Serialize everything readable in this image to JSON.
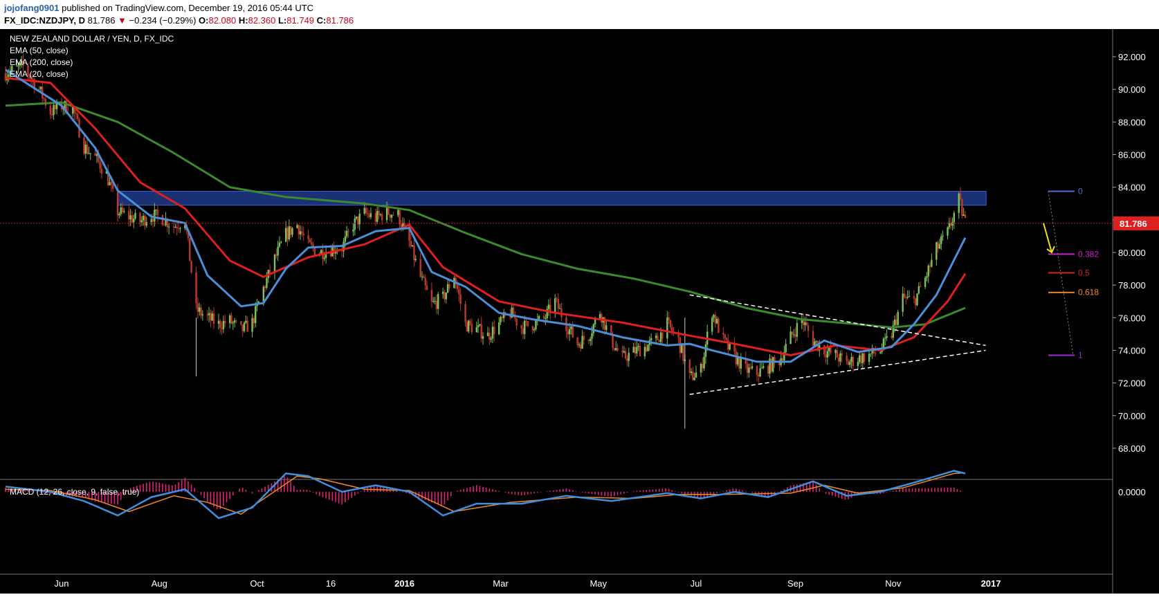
{
  "header": {
    "user": "jojofang0901",
    "published": "published on TradingView.com, December 19, 2016 05:44 UTC",
    "symbol": "FX_IDC:NZDJPY, D",
    "last": "81.786",
    "change_arrow": "▼",
    "change": "−0.234 (−0.29%)",
    "o_label": "O:",
    "o": "82.080",
    "h_label": "H:",
    "h": "82.360",
    "l_label": "L:",
    "l": "81.749",
    "c_label": "C:",
    "c": "81.786"
  },
  "legend": {
    "title": "NEW ZEALAND DOLLAR / YEN, D, FX_IDC",
    "ema50": "EMA (50, close)",
    "ema200": "EMA (200, close)",
    "ema20": "EMA (20, close)"
  },
  "macd": {
    "label": "MACD (12, 26, close, 9, false, true)",
    "zero_label": "0.0000"
  },
  "colors": {
    "background": "#000000",
    "up_candle": "#7cc35a",
    "down_candle": "#c0392b",
    "ema20": "#4a90d9",
    "ema50": "#e01f1f",
    "ema200": "#3c8a2e",
    "resistance_zone": "#1f3a8a",
    "price_line": "#e01f1f",
    "macd_line": "#3d8fe0",
    "signal_line": "#f08a24",
    "histogram": "#e8207a",
    "arrow": "#f2e600",
    "triangle": "#ffffff"
  },
  "chart_data": {
    "type": "candlestick",
    "instrument": "NZDJPY",
    "timeframe": "D",
    "y_axis": {
      "ticks": [
        "92.000",
        "90.000",
        "88.000",
        "86.000",
        "84.000",
        "82.000",
        "80.000",
        "78.000",
        "76.000",
        "74.000",
        "72.000",
        "70.000",
        "68.000"
      ],
      "ylim": [
        68.0,
        93.5
      ]
    },
    "x_axis": {
      "ticks": [
        "Jun",
        "Aug",
        "Oct",
        "16",
        "2016",
        "Mar",
        "May",
        "Jul",
        "Sep",
        "Nov",
        "2017"
      ]
    },
    "current_price_label": "81.786",
    "price_path": [
      [
        "2015-04-27",
        91.0
      ],
      [
        "2015-05-08",
        91.4
      ],
      [
        "2015-05-18",
        90.0
      ],
      [
        "2015-05-25",
        88.6
      ],
      [
        "2015-06-01",
        89.0
      ],
      [
        "2015-06-08",
        88.8
      ],
      [
        "2015-06-15",
        86.5
      ],
      [
        "2015-06-22",
        85.8
      ],
      [
        "2015-06-29",
        84.8
      ],
      [
        "2015-07-06",
        82.5
      ],
      [
        "2015-07-13",
        82.2
      ],
      [
        "2015-07-20",
        81.9
      ],
      [
        "2015-07-27",
        82.3
      ],
      [
        "2015-08-03",
        82.1
      ],
      [
        "2015-08-10",
        81.6
      ],
      [
        "2015-08-17",
        82.0
      ],
      [
        "2015-08-24",
        76.5
      ],
      [
        "2015-08-31",
        76.0
      ],
      [
        "2015-09-07",
        75.6
      ],
      [
        "2015-09-14",
        75.8
      ],
      [
        "2015-09-21",
        75.2
      ],
      [
        "2015-09-28",
        75.7
      ],
      [
        "2015-10-05",
        77.8
      ],
      [
        "2015-10-12",
        79.6
      ],
      [
        "2015-10-19",
        81.1
      ],
      [
        "2015-10-26",
        81.7
      ],
      [
        "2015-11-02",
        80.4
      ],
      [
        "2015-11-09",
        80.0
      ],
      [
        "2015-11-16",
        80.2
      ],
      [
        "2015-11-23",
        80.3
      ],
      [
        "2015-11-30",
        81.7
      ],
      [
        "2015-12-07",
        82.4
      ],
      [
        "2015-12-14",
        82.1
      ],
      [
        "2015-12-21",
        82.5
      ],
      [
        "2015-12-28",
        82.3
      ],
      [
        "2016-01-04",
        80.6
      ],
      [
        "2016-01-11",
        78.5
      ],
      [
        "2016-01-18",
        76.8
      ],
      [
        "2016-01-25",
        77.2
      ],
      [
        "2016-02-01",
        78.6
      ],
      [
        "2016-02-08",
        75.6
      ],
      [
        "2016-02-15",
        75.3
      ],
      [
        "2016-02-22",
        74.9
      ],
      [
        "2016-02-29",
        75.6
      ],
      [
        "2016-03-07",
        76.3
      ],
      [
        "2016-03-14",
        75.4
      ],
      [
        "2016-03-21",
        75.6
      ],
      [
        "2016-03-28",
        75.9
      ],
      [
        "2016-04-04",
        77.0
      ],
      [
        "2016-04-11",
        75.6
      ],
      [
        "2016-04-18",
        74.4
      ],
      [
        "2016-04-25",
        74.9
      ],
      [
        "2016-05-02",
        76.4
      ],
      [
        "2016-05-09",
        74.6
      ],
      [
        "2016-05-16",
        73.5
      ],
      [
        "2016-05-23",
        73.9
      ],
      [
        "2016-05-30",
        74.2
      ],
      [
        "2016-06-06",
        74.6
      ],
      [
        "2016-06-13",
        75.6
      ],
      [
        "2016-06-20",
        74.6
      ],
      [
        "2016-06-27",
        72.3
      ],
      [
        "2016-07-04",
        72.8
      ],
      [
        "2016-07-11",
        76.4
      ],
      [
        "2016-07-18",
        74.6
      ],
      [
        "2016-07-25",
        73.6
      ],
      [
        "2016-08-01",
        72.8
      ],
      [
        "2016-08-08",
        72.6
      ],
      [
        "2016-08-15",
        73.0
      ],
      [
        "2016-08-22",
        73.4
      ],
      [
        "2016-08-29",
        74.8
      ],
      [
        "2016-09-05",
        75.9
      ],
      [
        "2016-09-12",
        74.6
      ],
      [
        "2016-09-19",
        74.0
      ],
      [
        "2016-09-26",
        73.7
      ],
      [
        "2016-10-03",
        73.2
      ],
      [
        "2016-10-10",
        73.5
      ],
      [
        "2016-10-17",
        73.7
      ],
      [
        "2016-10-24",
        74.0
      ],
      [
        "2016-10-31",
        75.0
      ],
      [
        "2016-11-07",
        77.2
      ],
      [
        "2016-11-14",
        77.0
      ],
      [
        "2016-11-21",
        78.4
      ],
      [
        "2016-11-28",
        80.2
      ],
      [
        "2016-12-05",
        81.2
      ],
      [
        "2016-12-12",
        83.2
      ],
      [
        "2016-12-16",
        81.8
      ]
    ],
    "ema20": [
      [
        "2015-04-27",
        91.2
      ],
      [
        "2015-06-01",
        89.0
      ],
      [
        "2015-06-22",
        86.4
      ],
      [
        "2015-07-06",
        83.8
      ],
      [
        "2015-07-27",
        82.2
      ],
      [
        "2015-08-17",
        81.8
      ],
      [
        "2015-08-31",
        78.6
      ],
      [
        "2015-09-21",
        76.7
      ],
      [
        "2015-10-05",
        76.9
      ],
      [
        "2015-10-19",
        79.0
      ],
      [
        "2015-11-02",
        80.3
      ],
      [
        "2015-11-23",
        80.4
      ],
      [
        "2015-12-14",
        81.3
      ],
      [
        "2016-01-04",
        81.5
      ],
      [
        "2016-01-18",
        78.8
      ],
      [
        "2016-02-08",
        77.9
      ],
      [
        "2016-02-29",
        76.3
      ],
      [
        "2016-03-21",
        75.9
      ],
      [
        "2016-04-18",
        75.5
      ],
      [
        "2016-05-16",
        74.8
      ],
      [
        "2016-06-13",
        74.3
      ],
      [
        "2016-06-27",
        74.4
      ],
      [
        "2016-07-11",
        74.0
      ],
      [
        "2016-08-08",
        73.3
      ],
      [
        "2016-08-29",
        73.3
      ],
      [
        "2016-09-19",
        74.6
      ],
      [
        "2016-10-10",
        73.9
      ],
      [
        "2016-10-31",
        74.2
      ],
      [
        "2016-11-14",
        75.6
      ],
      [
        "2016-11-28",
        77.4
      ],
      [
        "2016-12-16",
        80.9
      ]
    ],
    "ema50": [
      [
        "2015-04-27",
        90.7
      ],
      [
        "2015-05-25",
        90.4
      ],
      [
        "2015-06-22",
        87.6
      ],
      [
        "2015-07-20",
        84.3
      ],
      [
        "2015-08-17",
        82.7
      ],
      [
        "2015-09-14",
        79.5
      ],
      [
        "2015-10-05",
        78.5
      ],
      [
        "2015-11-02",
        79.7
      ],
      [
        "2015-12-07",
        80.5
      ],
      [
        "2016-01-04",
        81.7
      ],
      [
        "2016-01-25",
        79.1
      ],
      [
        "2016-02-29",
        77.0
      ],
      [
        "2016-04-04",
        76.3
      ],
      [
        "2016-05-16",
        75.7
      ],
      [
        "2016-06-27",
        74.9
      ],
      [
        "2016-07-25",
        74.4
      ],
      [
        "2016-08-29",
        73.7
      ],
      [
        "2016-09-26",
        74.3
      ],
      [
        "2016-10-24",
        74.0
      ],
      [
        "2016-11-14",
        74.8
      ],
      [
        "2016-12-05",
        77.0
      ],
      [
        "2016-12-16",
        78.7
      ]
    ],
    "ema200": [
      [
        "2015-04-27",
        89.0
      ],
      [
        "2015-06-01",
        89.2
      ],
      [
        "2015-07-06",
        88.0
      ],
      [
        "2015-08-10",
        86.1
      ],
      [
        "2015-09-14",
        84.0
      ],
      [
        "2015-10-19",
        83.4
      ],
      [
        "2015-12-07",
        83.0
      ],
      [
        "2016-01-04",
        82.6
      ],
      [
        "2016-02-08",
        81.2
      ],
      [
        "2016-03-14",
        79.9
      ],
      [
        "2016-04-18",
        79.0
      ],
      [
        "2016-05-23",
        78.4
      ],
      [
        "2016-06-27",
        77.6
      ],
      [
        "2016-08-01",
        76.6
      ],
      [
        "2016-09-05",
        75.9
      ],
      [
        "2016-10-10",
        75.6
      ],
      [
        "2016-10-31",
        75.4
      ],
      [
        "2016-11-21",
        75.6
      ],
      [
        "2016-12-16",
        76.6
      ]
    ],
    "macd": [
      [
        "2015-04-27",
        0.2
      ],
      [
        "2015-05-25",
        0.0
      ],
      [
        "2015-06-15",
        -0.35
      ],
      [
        "2015-07-06",
        -0.9
      ],
      [
        "2015-07-27",
        -0.2
      ],
      [
        "2015-08-17",
        0.1
      ],
      [
        "2015-09-07",
        -1.0
      ],
      [
        "2015-09-28",
        -0.6
      ],
      [
        "2015-10-19",
        0.7
      ],
      [
        "2015-11-02",
        0.6
      ],
      [
        "2015-11-23",
        0.0
      ],
      [
        "2015-12-14",
        0.25
      ],
      [
        "2016-01-04",
        0.0
      ],
      [
        "2016-01-25",
        -0.9
      ],
      [
        "2016-02-15",
        -0.45
      ],
      [
        "2016-03-14",
        -0.45
      ],
      [
        "2016-04-11",
        -0.15
      ],
      [
        "2016-05-09",
        -0.35
      ],
      [
        "2016-06-13",
        -0.05
      ],
      [
        "2016-07-04",
        -0.25
      ],
      [
        "2016-07-25",
        0.0
      ],
      [
        "2016-08-15",
        -0.2
      ],
      [
        "2016-09-12",
        0.4
      ],
      [
        "2016-10-03",
        -0.15
      ],
      [
        "2016-10-24",
        0.0
      ],
      [
        "2016-11-14",
        0.35
      ],
      [
        "2016-12-09",
        0.8
      ],
      [
        "2016-12-16",
        0.7
      ]
    ],
    "signal": [
      [
        "2015-04-27",
        0.1
      ],
      [
        "2015-05-25",
        0.05
      ],
      [
        "2015-06-22",
        -0.3
      ],
      [
        "2015-07-13",
        -0.75
      ],
      [
        "2015-08-10",
        -0.15
      ],
      [
        "2015-08-31",
        -0.4
      ],
      [
        "2015-09-21",
        -0.85
      ],
      [
        "2015-10-26",
        0.6
      ],
      [
        "2015-11-09",
        0.5
      ],
      [
        "2015-12-07",
        0.1
      ],
      [
        "2016-01-04",
        0.05
      ],
      [
        "2016-02-01",
        -0.75
      ],
      [
        "2016-03-07",
        -0.4
      ],
      [
        "2016-04-18",
        -0.2
      ],
      [
        "2016-05-23",
        -0.25
      ],
      [
        "2016-06-20",
        -0.1
      ],
      [
        "2016-07-18",
        -0.1
      ],
      [
        "2016-08-29",
        -0.05
      ],
      [
        "2016-09-19",
        0.25
      ],
      [
        "2016-10-10",
        -0.05
      ],
      [
        "2016-11-07",
        0.15
      ],
      [
        "2016-12-09",
        0.7
      ],
      [
        "2016-12-16",
        0.72
      ]
    ],
    "resistance_zone": {
      "from": "2015-07-06",
      "to": "2016-12-29",
      "low": 82.9,
      "high": 83.75
    },
    "triangle": [
      [
        [
          "2016-06-27",
          77.4
        ],
        [
          "2016-12-05",
          74.3
        ]
      ],
      [
        [
          "2016-06-27",
          71.3
        ],
        [
          "2016-12-05",
          74.0
        ]
      ]
    ],
    "fibonacci": [
      {
        "label": "0",
        "value": 83.75,
        "color": "#4a6fd0"
      },
      {
        "label": "0.382",
        "value": 79.9,
        "color": "#d020d0"
      },
      {
        "label": "0.5",
        "value": 78.75,
        "color": "#e01f1f"
      },
      {
        "label": "0.618",
        "value": 77.55,
        "color": "#f08a24"
      },
      {
        "label": "1",
        "value": 73.7,
        "color": "#9b30d9"
      }
    ]
  }
}
